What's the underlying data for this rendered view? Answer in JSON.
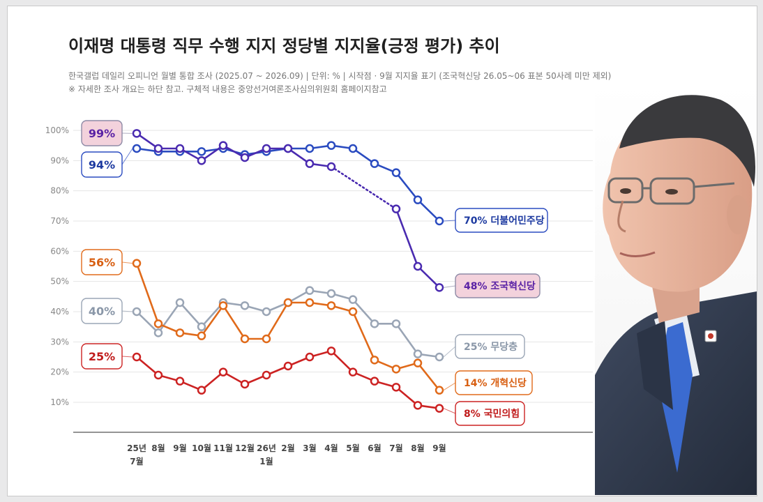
{
  "header": {
    "title": "이재명 대통령 직무 수행 지지 정당별 지지율(긍정 평가) 추이",
    "subtitle": "한국갤럽 데일리 오피니언 월별 통합 조사 (2025.07 ~ 2026.09) | 단위: % | 시작점 · 9월 지지율 표기 (조국혁신당 26.05~06 표본 50사례 미만 제외)",
    "note": "※ 자세한 조사 개요는 하단 참고. 구체적 내용은 중앙선거여론조사심의위원회 홈페이지참고"
  },
  "photo": {
    "description": "portrait-photo"
  },
  "chart_data": {
    "type": "line",
    "x": [
      "25년 7월",
      "8월",
      "9월",
      "10월",
      "11월",
      "12월",
      "26년 1월",
      "2월",
      "3월",
      "4월",
      "5월",
      "6월",
      "7월",
      "8월",
      "9월"
    ],
    "x_tick_labels": [
      [
        "25년",
        "7월"
      ],
      [
        "8월"
      ],
      [
        "9월"
      ],
      [
        "10월"
      ],
      [
        "11월"
      ],
      [
        "12월"
      ],
      [
        "26년",
        "1월"
      ],
      [
        "2월"
      ],
      [
        "3월"
      ],
      [
        "4월"
      ],
      [
        "5월"
      ],
      [
        "6월"
      ],
      [
        "7월"
      ],
      [
        "8월"
      ],
      [
        "9월"
      ]
    ],
    "y_ticks": [
      "10%",
      "20%",
      "30%",
      "40%",
      "50%",
      "60%",
      "70%",
      "80%",
      "90%",
      "100%"
    ],
    "ylim": [
      0,
      100
    ],
    "grid": true,
    "series": [
      {
        "key": "minju",
        "name": "더불어민주당",
        "color": "#2a4bc0",
        "values": [
          94,
          93,
          93,
          93,
          94,
          92,
          93,
          94,
          94,
          95,
          94,
          89,
          86,
          77,
          70
        ],
        "start_label": "94%",
        "end_label": "70% 더불어민주당"
      },
      {
        "key": "jokuk",
        "name": "조국혁신당",
        "color": "#4a2bb0",
        "values": [
          99,
          94,
          94,
          90,
          95,
          91,
          94,
          94,
          89,
          88,
          null,
          null,
          74,
          55,
          48
        ],
        "start_label": "99%",
        "end_label": "48% 조국혁신당"
      },
      {
        "key": "mudang",
        "name": "무당층",
        "color": "#9aa5b5",
        "values": [
          40,
          33,
          43,
          35,
          43,
          42,
          40,
          43,
          47,
          46,
          44,
          36,
          36,
          26,
          25
        ],
        "start_label": "40%",
        "end_label": "25% 무당층"
      },
      {
        "key": "gaehyeok",
        "name": "개혁신당",
        "color": "#e06a1a",
        "values": [
          56,
          36,
          33,
          32,
          42,
          31,
          31,
          43,
          43,
          42,
          40,
          24,
          21,
          23,
          14
        ],
        "start_label": "56%",
        "end_label": "14% 개혁신당"
      },
      {
        "key": "gukmin",
        "name": "국민의힘",
        "color": "#cc2222",
        "values": [
          25,
          19,
          17,
          14,
          20,
          16,
          19,
          22,
          25,
          27,
          20,
          17,
          15,
          9,
          8
        ],
        "start_label": "25%",
        "end_label": "8% 국민의힘"
      }
    ]
  }
}
